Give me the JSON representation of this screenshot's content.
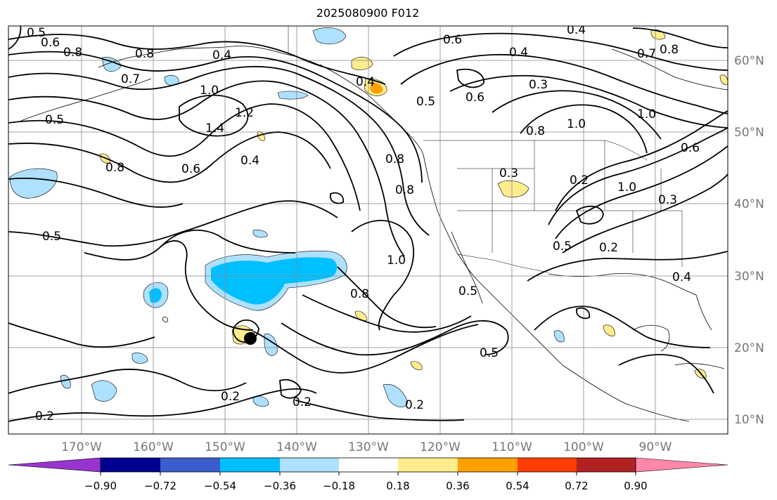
{
  "title": "2025080900 F012",
  "lon_labels": [
    "170°W",
    "160°W",
    "150°W",
    "140°W",
    "130°W",
    "120°W",
    "110°W",
    "100°W",
    "90°W"
  ],
  "lat_labels": [
    "60°N",
    "50°N",
    "40°N",
    "30°N",
    "20°N",
    "10°N"
  ],
  "colorbar": {
    "colors": [
      "#9a34d0",
      "#000090",
      "#3a5ccc",
      "#00bfff",
      "#aee0ff",
      "#ffffff",
      "#ffec8c",
      "#ffa000",
      "#ff3c00",
      "#b22222",
      "#ff88aa"
    ],
    "tick_labels": [
      "−0.90",
      "−0.72",
      "−0.54",
      "−0.36",
      "−0.18",
      "0.18",
      "0.36",
      "0.54",
      "0.72",
      "0.90"
    ]
  },
  "contour_labels": [
    "0.5",
    "0.6",
    "0.8",
    "0.8",
    "0.7",
    "0.4",
    "1.0",
    "1.4",
    "1.2",
    "0.6",
    "0.4",
    "0.8",
    "0.5",
    "0.8",
    "0.8",
    "0.5",
    "0.6",
    "0.6",
    "0.4",
    "0.3",
    "0.7",
    "0.8",
    "1.0",
    "1.0",
    "0.8",
    "0.3",
    "0.2",
    "1.0",
    "0.5",
    "0.2",
    "0.3",
    "1.0",
    "0.8",
    "0.5",
    "0.4",
    "0.5",
    "0.2",
    "0.2",
    "0.2",
    "0.2",
    "0.4",
    "0.6",
    "0.4"
  ],
  "marker": "storm-center"
}
